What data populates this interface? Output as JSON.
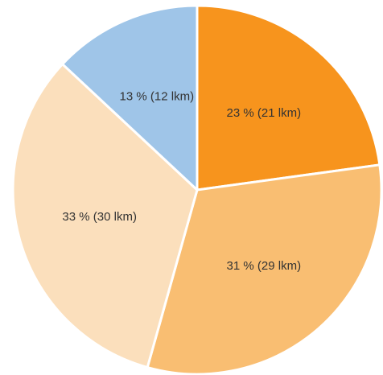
{
  "chart_data": {
    "type": "pie",
    "title": "",
    "start_angle_deg": 0,
    "direction": "clockwise",
    "slices": [
      {
        "label": "23 % (21 lkm)",
        "value": 21,
        "percent": 23,
        "color": "#F7941D"
      },
      {
        "label": "31 % (29 lkm)",
        "value": 29,
        "percent": 31,
        "color": "#F9BE72"
      },
      {
        "label": "33 % (30 lkm)",
        "value": 30,
        "percent": 33,
        "color": "#FBDFBC"
      },
      {
        "label": "13 % (12 lkm)",
        "value": 12,
        "percent": 13,
        "color": "#9FC5E8"
      }
    ],
    "slice_border_color": "#FFFFFF",
    "label_color": "#333333"
  }
}
